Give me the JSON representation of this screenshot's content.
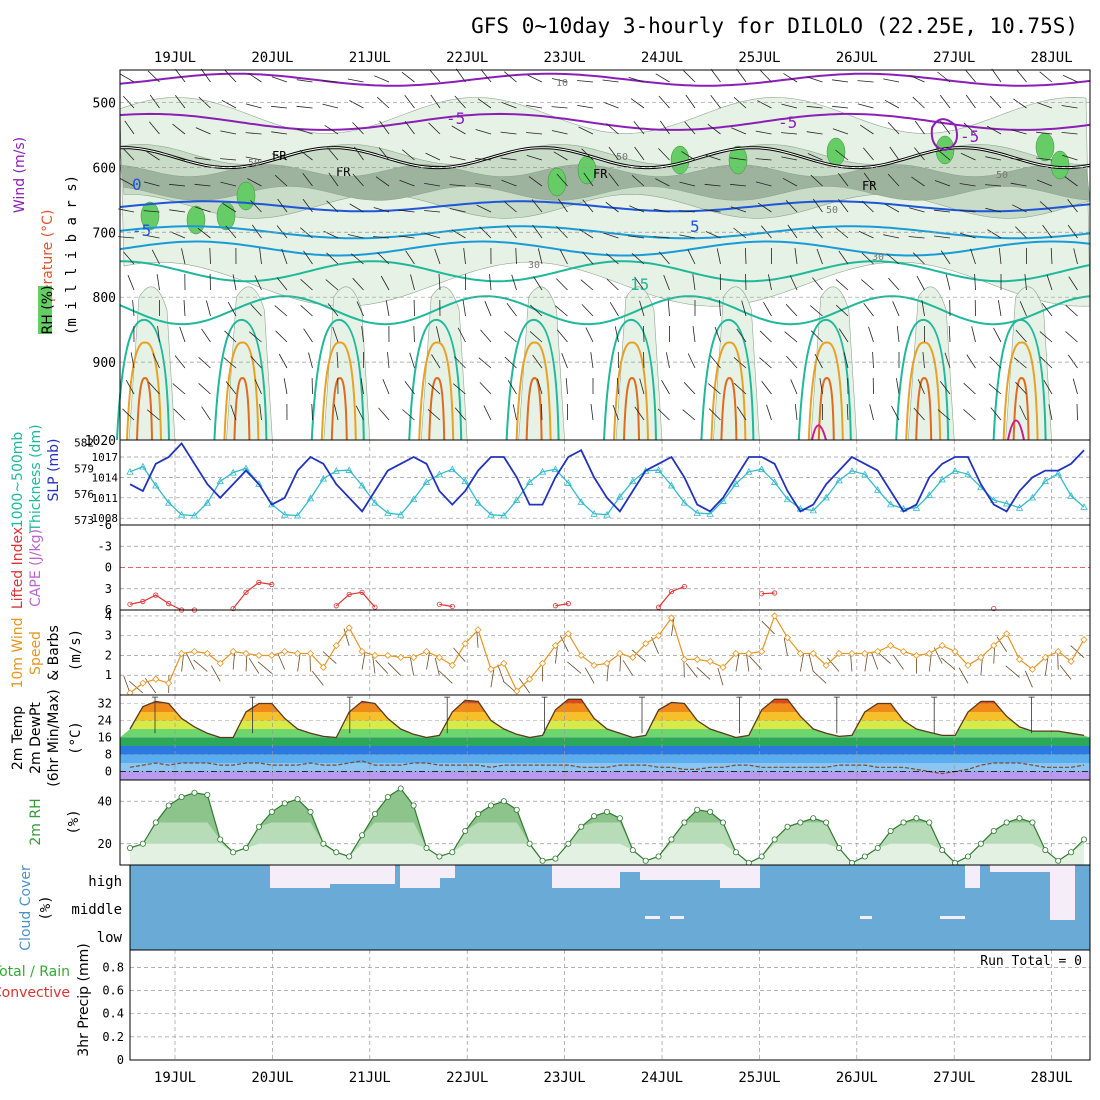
{
  "title": "GFS 0~10day 3-hourly for DILOLO (22.25E, 10.75S)",
  "dates": [
    "19JUL",
    "20JUL",
    "21JUL",
    "22JUL",
    "23JUL",
    "24JUL",
    "25JUL",
    "26JUL",
    "27JUL",
    "28JUL"
  ],
  "colors": {
    "frame": "#000000",
    "grid": "#999999",
    "rh_light": "#e6f2e6",
    "rh_mid": "#c8dcc8",
    "rh_dark": "#9eb39e",
    "rh_green": "#66cc66",
    "temp_purple": "#8b1fb5",
    "temp_blue": "#1f55d9",
    "temp_sky": "#189bd6",
    "temp_teal": "#1fb89b",
    "temp_orange": "#e8a125",
    "temp_red": "#e06a1d",
    "temp_magenta": "#cc1a8a",
    "slp": "#2233bb",
    "thickness": "#33bbcc",
    "lifted": "#dd3333",
    "wind": "#e69521",
    "rh2m": "#3a9a3a",
    "cloud": "#6aaad6",
    "cloud_clear": "#f5eef8",
    "precip": "#33aa33"
  },
  "panels": {
    "upper": {
      "left_labels": [
        "RH (%)",
        "Temperature (°C)",
        "Wind (m/s)"
      ],
      "axis_label": "(m i l l i b a r s)",
      "ticks": [
        "500",
        "600",
        "700",
        "800",
        "900",
        "1020"
      ],
      "labels": [
        "-5",
        "-5",
        "-5",
        "0",
        "-5",
        "5",
        "15",
        "FR",
        "FR",
        "FR",
        "FR",
        "50",
        "50",
        "50",
        "50",
        "30",
        "30",
        "10"
      ]
    },
    "slp": {
      "left_label_1": "1000~500mb",
      "left_label_2": "Thickness (dm)",
      "right_label": "SLP (mb)",
      "thickness_ticks": [
        "582",
        "579",
        "576",
        "573"
      ],
      "slp_ticks": [
        "1017",
        "1014",
        "1011",
        "1008"
      ]
    },
    "cape": {
      "left_label_1": "Lifted Index",
      "left_label_2": "CAPE (J/kg)",
      "ticks": [
        "-6",
        "-3",
        "0",
        "3",
        "6"
      ]
    },
    "wind": {
      "left_label_1": "10m Wind",
      "left_label_2": "Speed",
      "left_label_3": "& Barbs",
      "unit": "(m/s)",
      "ticks": [
        "4",
        "3",
        "2",
        "1"
      ]
    },
    "temp": {
      "left_label_1": "2m Temp",
      "left_label_2": "2m DewPt",
      "left_label_3": "(6hr Min/Max)",
      "unit": "(°C)",
      "ticks": [
        "32",
        "24",
        "16",
        "8",
        "0"
      ]
    },
    "rh": {
      "left_label": "2m RH",
      "unit": "(%)",
      "ticks": [
        "40",
        "20"
      ]
    },
    "cloud": {
      "left_label": "Cloud Cover",
      "unit": "(%)",
      "ticks": [
        "high",
        "middle",
        "low"
      ]
    },
    "precip": {
      "left_label_1": "Total / Rain",
      "left_label_2": "Convective",
      "left_label_3": "3hr Precip (mm)",
      "run_total": "Run Total = 0",
      "ticks": [
        "0.8",
        "0.6",
        "0.4",
        "0.2",
        "0"
      ]
    }
  },
  "chart_data": [
    {
      "type": "line",
      "title": "SLP (mb)",
      "x": [
        "19JUL 00",
        "19JUL 03",
        "19JUL 06",
        "19JUL 09",
        "19JUL 12",
        "19JUL 15",
        "19JUL 18",
        "19JUL 21",
        "20JUL 00",
        "20JUL 03",
        "20JUL 06",
        "20JUL 09",
        "20JUL 12",
        "20JUL 15",
        "20JUL 18",
        "20JUL 21",
        "21JUL 00",
        "21JUL 03",
        "21JUL 06",
        "21JUL 09",
        "21JUL 12",
        "21JUL 15",
        "21JUL 18",
        "21JUL 21",
        "22JUL 00",
        "22JUL 03",
        "22JUL 06",
        "22JUL 09",
        "22JUL 12",
        "22JUL 15",
        "22JUL 18",
        "22JUL 21",
        "23JUL 00",
        "23JUL 03",
        "23JUL 06",
        "23JUL 09",
        "23JUL 12",
        "23JUL 15",
        "23JUL 18",
        "23JUL 21",
        "24JUL 00",
        "24JUL 03",
        "24JUL 06",
        "24JUL 09",
        "24JUL 12",
        "24JUL 15",
        "24JUL 18",
        "24JUL 21",
        "25JUL 00",
        "25JUL 03",
        "25JUL 06",
        "25JUL 09",
        "25JUL 12",
        "25JUL 15",
        "25JUL 18",
        "25JUL 21",
        "26JUL 00",
        "26JUL 03",
        "26JUL 06",
        "26JUL 09",
        "26JUL 12",
        "26JUL 15",
        "26JUL 18",
        "26JUL 21",
        "27JUL 00",
        "27JUL 03",
        "27JUL 06",
        "27JUL 09",
        "27JUL 12",
        "27JUL 15",
        "27JUL 18",
        "27JUL 21",
        "28JUL 00",
        "28JUL 03",
        "28JUL 06"
      ],
      "series": [
        {
          "name": "SLP (mb)",
          "values": [
            1013,
            1012,
            1016,
            1017,
            1019,
            1016,
            1013,
            1011,
            1013,
            1015,
            1013,
            1010,
            1011,
            1015,
            1017,
            1016,
            1013,
            1011,
            1009,
            1012,
            1015,
            1016,
            1017,
            1016,
            1012,
            1010,
            1012,
            1015,
            1017,
            1017,
            1014,
            1010,
            1010,
            1014,
            1017,
            1018,
            1014,
            1011,
            1009,
            1012,
            1015,
            1016,
            1017,
            1014,
            1010,
            1009,
            1011,
            1014,
            1017,
            1017,
            1016,
            1012,
            1009,
            1010,
            1013,
            1015,
            1017,
            1016,
            1015,
            1012,
            1009,
            1010,
            1014,
            1016,
            1017,
            1017,
            1013,
            1010,
            1009,
            1012,
            1014,
            1015,
            1015,
            1016,
            1018
          ]
        },
        {
          "name": "1000~500mb Thickness (dm)",
          "values": [
            578.6,
            579.2,
            577,
            575,
            573.6,
            573.5,
            575,
            577.5,
            578.5,
            579,
            577.2,
            574.8,
            573.6,
            573.5,
            575.5,
            577.8,
            578.7,
            578.8,
            577,
            575,
            573.8,
            573.6,
            575.4,
            577.4,
            578.3,
            578.9,
            577.5,
            575,
            573.6,
            573.5,
            575.3,
            577.4,
            578.6,
            578.9,
            577.3,
            575.1,
            573.7,
            573.6,
            575.7,
            577.5,
            578.7,
            578.8,
            577,
            575,
            573.8,
            573.7,
            575.2,
            577.2,
            578.6,
            578.9,
            577.4,
            575.4,
            574.3,
            574.1,
            575.6,
            577.6,
            578.7,
            578.3,
            576.5,
            574.8,
            574.3,
            574.4,
            575.9,
            577.7,
            578.7,
            578.3,
            576.8,
            575.3,
            574.9,
            574.4,
            575.6,
            577.5,
            578.4,
            575.8,
            574.5
          ]
        }
      ]
    },
    {
      "type": "line",
      "title": "Lifted Index",
      "x": [
        "19JUL 00",
        "19JUL 03",
        "19JUL 06",
        "19JUL 09",
        "19JUL 12",
        "19JUL 15",
        "20JUL 00",
        "20JUL 03",
        "20JUL 06",
        "20JUL 09",
        "21JUL 00",
        "21JUL 03",
        "21JUL 06",
        "21JUL 09",
        "22JUL 00",
        "22JUL 03",
        "23JUL 03",
        "23JUL 06",
        "24JUL 03",
        "24JUL 06",
        "24JUL 09",
        "25JUL 03",
        "25JUL 06",
        "27JUL 09"
      ],
      "series": [
        {
          "name": "Lifted Index",
          "values": [
            5.2,
            4.8,
            3.9,
            5.1,
            6,
            6,
            5.8,
            3.5,
            2.1,
            2.4,
            5.4,
            3.8,
            3.5,
            5.6,
            5.2,
            5.5,
            5.4,
            5.1,
            5.6,
            3.4,
            2.7,
            3.7,
            3.6,
            5.8
          ]
        }
      ],
      "ylim": [
        6,
        -6
      ]
    },
    {
      "type": "line",
      "title": "10m Wind Speed (m/s)",
      "x": [
        "19JUL 00",
        "19JUL 03",
        "19JUL 06",
        "19JUL 09",
        "19JUL 12",
        "19JUL 15",
        "19JUL 18",
        "19JUL 21",
        "20JUL 00",
        "20JUL 03",
        "20JUL 06",
        "20JUL 09",
        "20JUL 12",
        "20JUL 15",
        "20JUL 18",
        "20JUL 21",
        "21JUL 00",
        "21JUL 03",
        "21JUL 06",
        "21JUL 09",
        "21JUL 12",
        "21JUL 15",
        "21JUL 18",
        "21JUL 21",
        "22JUL 00",
        "22JUL 03",
        "22JUL 06",
        "22JUL 09",
        "22JUL 12",
        "22JUL 15",
        "22JUL 18",
        "22JUL 21",
        "23JUL 00",
        "23JUL 03",
        "23JUL 06",
        "23JUL 09",
        "23JUL 12",
        "23JUL 15",
        "23JUL 18",
        "23JUL 21",
        "24JUL 00",
        "24JUL 03",
        "24JUL 06",
        "24JUL 09",
        "24JUL 12",
        "24JUL 15",
        "24JUL 18",
        "24JUL 21",
        "25JUL 00",
        "25JUL 03",
        "25JUL 06",
        "25JUL 09",
        "25JUL 12",
        "25JUL 15",
        "25JUL 18",
        "25JUL 21",
        "26JUL 00",
        "26JUL 03",
        "26JUL 06",
        "26JUL 09",
        "26JUL 12",
        "26JUL 15",
        "26JUL 18",
        "26JUL 21",
        "27JUL 00",
        "27JUL 03",
        "27JUL 06",
        "27JUL 09",
        "27JUL 12",
        "27JUL 15",
        "27JUL 18",
        "27JUL 21",
        "28JUL 00",
        "28JUL 03",
        "28JUL 06"
      ],
      "series": [
        {
          "name": "10m Wind Speed",
          "values": [
            0.1,
            0.6,
            0.8,
            0.6,
            2.1,
            2.2,
            2.1,
            1.6,
            2.2,
            2.1,
            2,
            2,
            2.2,
            2.1,
            2.1,
            1.4,
            2.5,
            3.4,
            2.2,
            2,
            2,
            1.9,
            1.9,
            2.2,
            1.9,
            1.5,
            2.6,
            3.3,
            1.3,
            1.6,
            0.2,
            0.8,
            1.6,
            2.5,
            3.1,
            2,
            1.5,
            1.6,
            2.1,
            1.9,
            2.6,
            3,
            3.9,
            1.8,
            1.8,
            1.7,
            1.4,
            2.1,
            2.1,
            2.2,
            4,
            2.9,
            2.1,
            2.1,
            1.5,
            2.1,
            2.1,
            2.1,
            2.2,
            2.5,
            2.2,
            2,
            2.1,
            2.5,
            2.2,
            1.5,
            1.9,
            2.5,
            3.1,
            1.8,
            1.3,
            1.9,
            2.2,
            1.7,
            2.8
          ]
        }
      ],
      "ylim": [
        0,
        4
      ]
    },
    {
      "type": "area",
      "title": "2m Temp (°C)",
      "x": [
        "19JUL 00",
        "19JUL 03",
        "19JUL 06",
        "19JUL 09",
        "19JUL 12",
        "19JUL 15",
        "19JUL 18",
        "19JUL 21",
        "20JUL 00",
        "20JUL 03",
        "20JUL 06",
        "20JUL 09",
        "20JUL 12",
        "20JUL 15",
        "20JUL 18",
        "20JUL 21",
        "21JUL 00",
        "21JUL 03",
        "21JUL 06",
        "21JUL 09",
        "21JUL 12",
        "21JUL 15",
        "21JUL 18",
        "21JUL 21",
        "22JUL 00",
        "22JUL 03",
        "22JUL 06",
        "22JUL 09",
        "22JUL 12",
        "22JUL 15",
        "22JUL 18",
        "22JUL 21",
        "23JUL 00",
        "23JUL 03",
        "23JUL 06",
        "23JUL 09",
        "23JUL 12",
        "23JUL 15",
        "23JUL 18",
        "23JUL 21",
        "24JUL 00",
        "24JUL 03",
        "24JUL 06",
        "24JUL 09",
        "24JUL 12",
        "24JUL 15",
        "24JUL 18",
        "24JUL 21",
        "25JUL 00",
        "25JUL 03",
        "25JUL 06",
        "25JUL 09",
        "25JUL 12",
        "25JUL 15",
        "25JUL 18",
        "25JUL 21",
        "26JUL 00",
        "26JUL 03",
        "26JUL 06",
        "26JUL 09",
        "26JUL 12",
        "26JUL 15",
        "26JUL 18",
        "26JUL 21",
        "27JUL 00",
        "27JUL 03",
        "27JUL 06",
        "27JUL 09",
        "27JUL 12",
        "27JUL 15",
        "27JUL 18",
        "27JUL 21",
        "28JUL 00",
        "28JUL 03",
        "28JUL 06"
      ],
      "series": [
        {
          "name": "2m Temp",
          "values": [
            20,
            30.5,
            33,
            32,
            25,
            21,
            18,
            16,
            16,
            28,
            32,
            32,
            25,
            20,
            18,
            16.5,
            16,
            28,
            33,
            32,
            25,
            20,
            17.5,
            16,
            17,
            28,
            33.5,
            33,
            24,
            20,
            17.5,
            16,
            17,
            29,
            34,
            34,
            25,
            20,
            18,
            16,
            17,
            29,
            32.5,
            32,
            24,
            20,
            18,
            16,
            17,
            29,
            34,
            34,
            26,
            20,
            18,
            16.5,
            17,
            28,
            32,
            32,
            24,
            20,
            18.5,
            17,
            17,
            28,
            33,
            33,
            26,
            21,
            19,
            19,
            19,
            18,
            17
          ]
        },
        {
          "name": "2m DewPt",
          "values": [
            2,
            3,
            4,
            3,
            4,
            4,
            4,
            3,
            3,
            4,
            4,
            3,
            3,
            3,
            4,
            3,
            3,
            4,
            5,
            3,
            3,
            3,
            4,
            4,
            3,
            3,
            3,
            3,
            2,
            3,
            3,
            3,
            3,
            3,
            3,
            2,
            2,
            2,
            3,
            3,
            3,
            2,
            2,
            1,
            1,
            2,
            2,
            3,
            3,
            2,
            2,
            2,
            2,
            2,
            2,
            3,
            3,
            3,
            2,
            2,
            2,
            1,
            0,
            -1,
            0,
            1,
            3,
            4,
            4,
            4,
            3,
            2,
            2,
            2,
            3
          ]
        }
      ],
      "ylim": [
        -4,
        36
      ]
    },
    {
      "type": "area",
      "title": "2m RH (%)",
      "x": [
        "19JUL 00",
        "19JUL 03",
        "19JUL 06",
        "19JUL 09",
        "19JUL 12",
        "19JUL 15",
        "19JUL 18",
        "19JUL 21",
        "20JUL 00",
        "20JUL 03",
        "20JUL 06",
        "20JUL 09",
        "20JUL 12",
        "20JUL 15",
        "20JUL 18",
        "20JUL 21",
        "21JUL 00",
        "21JUL 03",
        "21JUL 06",
        "21JUL 09",
        "21JUL 12",
        "21JUL 15",
        "21JUL 18",
        "21JUL 21",
        "22JUL 00",
        "22JUL 03",
        "22JUL 06",
        "22JUL 09",
        "22JUL 12",
        "22JUL 15",
        "22JUL 18",
        "22JUL 21",
        "23JUL 00",
        "23JUL 03",
        "23JUL 06",
        "23JUL 09",
        "23JUL 12",
        "23JUL 15",
        "23JUL 18",
        "23JUL 21",
        "24JUL 00",
        "24JUL 03",
        "24JUL 06",
        "24JUL 09",
        "24JUL 12",
        "24JUL 15",
        "24JUL 18",
        "24JUL 21",
        "25JUL 00",
        "25JUL 03",
        "25JUL 06",
        "25JUL 09",
        "25JUL 12",
        "25JUL 15",
        "25JUL 18",
        "25JUL 21",
        "26JUL 00",
        "26JUL 03",
        "26JUL 06",
        "26JUL 09",
        "26JUL 12",
        "26JUL 15",
        "26JUL 18",
        "26JUL 21",
        "27JUL 00",
        "27JUL 03",
        "27JUL 06",
        "27JUL 09",
        "27JUL 12",
        "27JUL 15",
        "27JUL 18",
        "27JUL 21",
        "28JUL 00",
        "28JUL 03",
        "28JUL 06"
      ],
      "series": [
        {
          "name": "2m RH",
          "values": [
            18,
            20,
            30,
            38,
            42,
            44,
            43,
            22,
            16,
            18,
            28,
            35,
            39,
            41,
            35,
            20,
            16,
            14,
            24,
            34,
            42,
            46,
            38,
            18,
            14,
            16,
            26,
            34,
            38,
            40,
            36,
            20,
            12,
            13,
            20,
            28,
            33,
            35,
            32,
            17,
            12,
            14,
            22,
            30,
            36,
            35,
            30,
            16,
            11,
            14,
            22,
            28,
            30,
            32,
            30,
            18,
            11,
            14,
            18,
            26,
            30,
            32,
            30,
            17,
            11,
            14,
            20,
            26,
            30,
            32,
            30,
            17,
            12,
            16,
            22
          ]
        }
      ],
      "ylim": [
        10,
        50
      ]
    },
    {
      "type": "bar",
      "title": "Cloud Cover (%)",
      "categories": [
        "high",
        "middle",
        "low"
      ],
      "values": [
        35,
        3,
        0
      ]
    },
    {
      "type": "bar",
      "title": "3hr Precip (mm)",
      "values": [
        0
      ],
      "ylim": [
        0,
        0.9
      ]
    }
  ]
}
